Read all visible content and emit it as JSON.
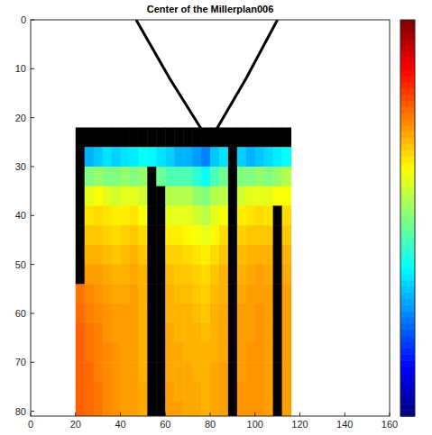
{
  "chart_data": {
    "type": "heatmap",
    "title": "Center of the Millerplan006",
    "xlim": [
      0,
      160
    ],
    "ylim": [
      81,
      0
    ],
    "xticks": [
      0,
      20,
      40,
      60,
      80,
      100,
      120,
      140,
      160
    ],
    "yticks": [
      0,
      10,
      20,
      30,
      40,
      50,
      60,
      70,
      80
    ],
    "color": "jet",
    "zlim": [
      0,
      1
    ],
    "x_edges": [
      20,
      24,
      28,
      32,
      36,
      40,
      44,
      48,
      52,
      56,
      60,
      64,
      68,
      72,
      76,
      80,
      84,
      88,
      92,
      96,
      100,
      104,
      108,
      112,
      116
    ],
    "y_edges": [
      22,
      26,
      30,
      34,
      38,
      42,
      46,
      50,
      54,
      58,
      62,
      66,
      70,
      74,
      78,
      82
    ],
    "cells": [
      [
        null,
        null,
        null,
        null,
        null,
        null,
        null,
        null,
        null,
        null,
        null,
        null,
        null,
        null,
        null,
        null,
        null,
        null,
        null,
        null,
        null,
        null,
        null,
        null
      ],
      [
        null,
        0.3,
        0.32,
        0.35,
        0.33,
        0.35,
        0.36,
        0.38,
        0.37,
        0.35,
        0.33,
        0.3,
        0.3,
        0.28,
        0.25,
        0.32,
        0.35,
        null,
        0.33,
        0.3,
        0.32,
        0.34,
        0.36,
        0.38
      ],
      [
        null,
        0.5,
        0.52,
        0.5,
        0.5,
        0.52,
        0.5,
        0.52,
        null,
        0.48,
        0.45,
        0.45,
        0.45,
        0.42,
        0.38,
        0.45,
        0.48,
        null,
        0.5,
        0.5,
        0.52,
        0.5,
        0.52,
        0.55
      ],
      [
        null,
        0.6,
        0.62,
        0.6,
        0.58,
        0.6,
        0.6,
        0.58,
        null,
        null,
        0.55,
        0.55,
        0.55,
        0.52,
        0.5,
        0.55,
        0.56,
        null,
        0.58,
        0.6,
        0.6,
        0.6,
        0.62,
        0.62
      ],
      [
        null,
        0.65,
        0.66,
        0.65,
        0.64,
        0.64,
        0.65,
        0.62,
        null,
        null,
        0.6,
        0.6,
        0.6,
        0.58,
        0.56,
        0.6,
        0.62,
        null,
        0.64,
        0.65,
        0.66,
        0.65,
        null,
        0.66
      ],
      [
        null,
        0.68,
        0.68,
        0.67,
        0.66,
        0.67,
        0.68,
        0.66,
        null,
        null,
        0.64,
        0.64,
        0.63,
        0.62,
        0.6,
        0.63,
        0.66,
        null,
        0.67,
        0.68,
        0.68,
        0.68,
        null,
        0.68
      ],
      [
        null,
        0.7,
        0.7,
        0.69,
        0.68,
        0.69,
        0.7,
        0.68,
        null,
        null,
        0.67,
        0.67,
        0.66,
        0.65,
        0.64,
        0.66,
        0.68,
        null,
        0.69,
        0.7,
        0.7,
        0.7,
        null,
        0.7
      ],
      [
        null,
        0.72,
        0.72,
        0.71,
        0.7,
        0.7,
        0.71,
        0.7,
        null,
        null,
        0.69,
        0.68,
        0.68,
        0.67,
        0.66,
        0.68,
        0.7,
        null,
        0.7,
        0.71,
        0.72,
        0.71,
        null,
        0.71
      ],
      [
        0.76,
        0.74,
        0.73,
        0.72,
        0.71,
        0.71,
        0.72,
        0.7,
        null,
        null,
        0.7,
        0.69,
        0.69,
        0.68,
        0.67,
        0.69,
        0.7,
        null,
        0.71,
        0.72,
        0.72,
        0.72,
        null,
        0.72
      ],
      [
        0.77,
        0.75,
        0.74,
        0.73,
        0.72,
        0.72,
        0.72,
        0.7,
        null,
        null,
        0.7,
        0.7,
        0.7,
        0.69,
        0.68,
        0.7,
        0.71,
        null,
        0.72,
        0.72,
        0.73,
        0.72,
        null,
        0.72
      ],
      [
        0.78,
        0.76,
        0.75,
        0.73,
        0.72,
        0.72,
        0.72,
        0.7,
        null,
        null,
        0.71,
        0.7,
        0.7,
        0.7,
        0.69,
        0.7,
        0.71,
        null,
        0.72,
        0.72,
        0.73,
        0.72,
        null,
        0.72
      ],
      [
        0.78,
        0.76,
        0.75,
        0.74,
        0.73,
        0.72,
        0.72,
        0.7,
        null,
        null,
        0.71,
        0.71,
        0.7,
        0.7,
        0.7,
        0.7,
        0.71,
        null,
        0.72,
        0.73,
        0.73,
        0.72,
        null,
        0.72
      ],
      [
        0.78,
        0.77,
        0.75,
        0.74,
        0.73,
        0.72,
        0.72,
        0.7,
        null,
        null,
        0.71,
        0.71,
        0.71,
        0.7,
        0.7,
        0.71,
        0.72,
        null,
        0.72,
        0.73,
        0.73,
        0.72,
        null,
        0.72
      ],
      [
        0.78,
        0.77,
        0.76,
        0.74,
        0.73,
        0.72,
        0.72,
        0.71,
        null,
        null,
        0.72,
        0.71,
        0.71,
        0.71,
        0.7,
        0.71,
        0.72,
        null,
        0.73,
        0.73,
        0.73,
        0.72,
        null,
        0.72
      ],
      [
        0.78,
        0.77,
        0.76,
        0.74,
        0.73,
        0.72,
        0.72,
        0.71,
        null,
        null,
        0.72,
        0.72,
        0.71,
        0.71,
        0.7,
        0.71,
        0.72,
        null,
        0.73,
        0.73,
        0.73,
        0.72,
        null,
        0.72
      ]
    ],
    "lines": [
      {
        "x": [
          47,
          62,
          77
        ],
        "values": [
          0,
          12,
          23
        ]
      },
      {
        "x": [
          110,
          96,
          82
        ],
        "values": [
          0,
          12,
          23
        ]
      }
    ]
  }
}
